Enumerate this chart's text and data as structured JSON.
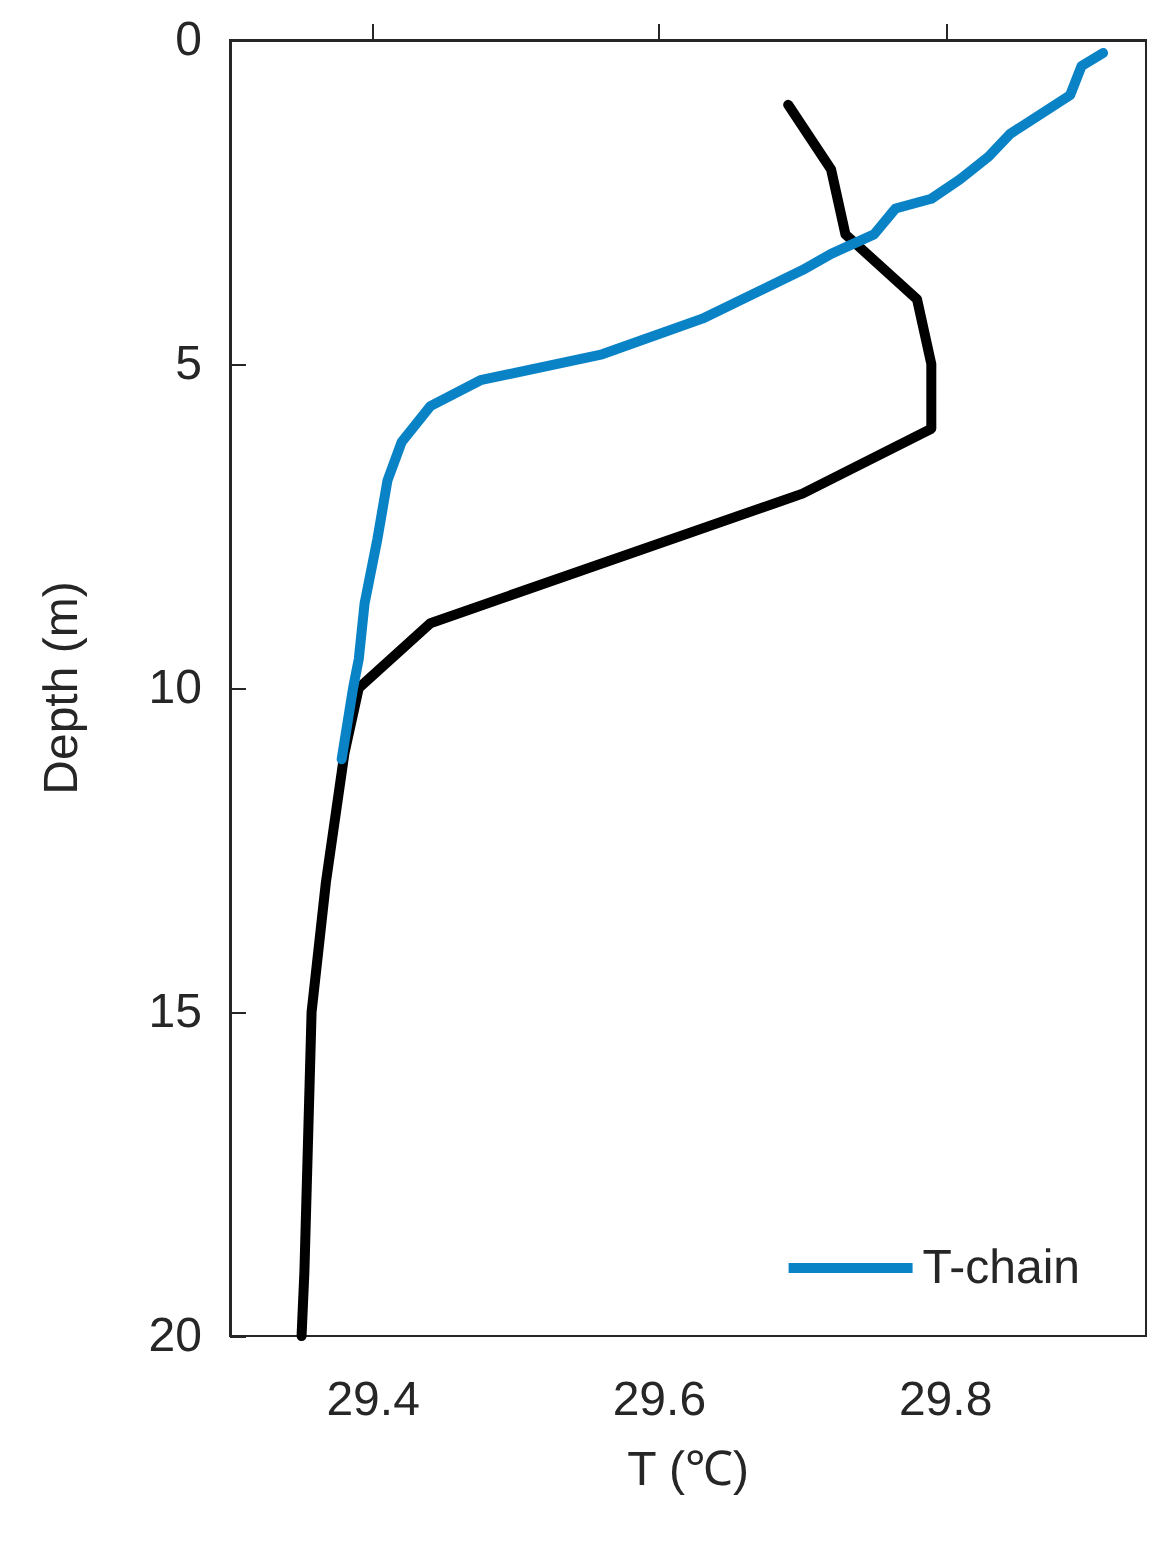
{
  "chart_data": {
    "type": "line",
    "xlabel": "T (℃)",
    "ylabel": "Depth (m)",
    "xlim": [
      29.3,
      29.94
    ],
    "xticks": [
      29.4,
      29.6,
      29.8
    ],
    "ylim": [
      20,
      0
    ],
    "yticks": [
      0,
      5,
      10,
      15,
      20
    ],
    "grid": false,
    "legend": "bottom right",
    "line_style": "solid",
    "marker": "none",
    "series": [
      {
        "color": "#000000",
        "x": [
          29.69,
          29.72,
          29.73,
          29.78,
          29.79,
          29.79,
          29.7,
          29.44,
          29.39,
          29.38,
          29.367,
          29.357,
          29.352,
          29.35
        ],
        "values": [
          1,
          2,
          3,
          4,
          5,
          6,
          7,
          9,
          10,
          11,
          13,
          15,
          19,
          20
        ]
      },
      {
        "name": "T-chain",
        "color": "#0a83c6",
        "x": [
          29.91,
          29.895,
          29.887,
          29.845,
          29.83,
          29.81,
          29.79,
          29.765,
          29.75,
          29.72,
          29.7,
          29.63,
          29.56,
          29.475,
          29.44,
          29.42,
          29.41,
          29.403,
          29.394,
          29.39,
          29.386,
          29.378
        ],
        "values": [
          0.2,
          0.4,
          0.85,
          1.45,
          1.8,
          2.15,
          2.45,
          2.6,
          3.0,
          3.3,
          3.55,
          4.3,
          4.85,
          5.25,
          5.65,
          6.2,
          6.8,
          7.7,
          8.7,
          9.55,
          10,
          11.1
        ]
      }
    ]
  }
}
